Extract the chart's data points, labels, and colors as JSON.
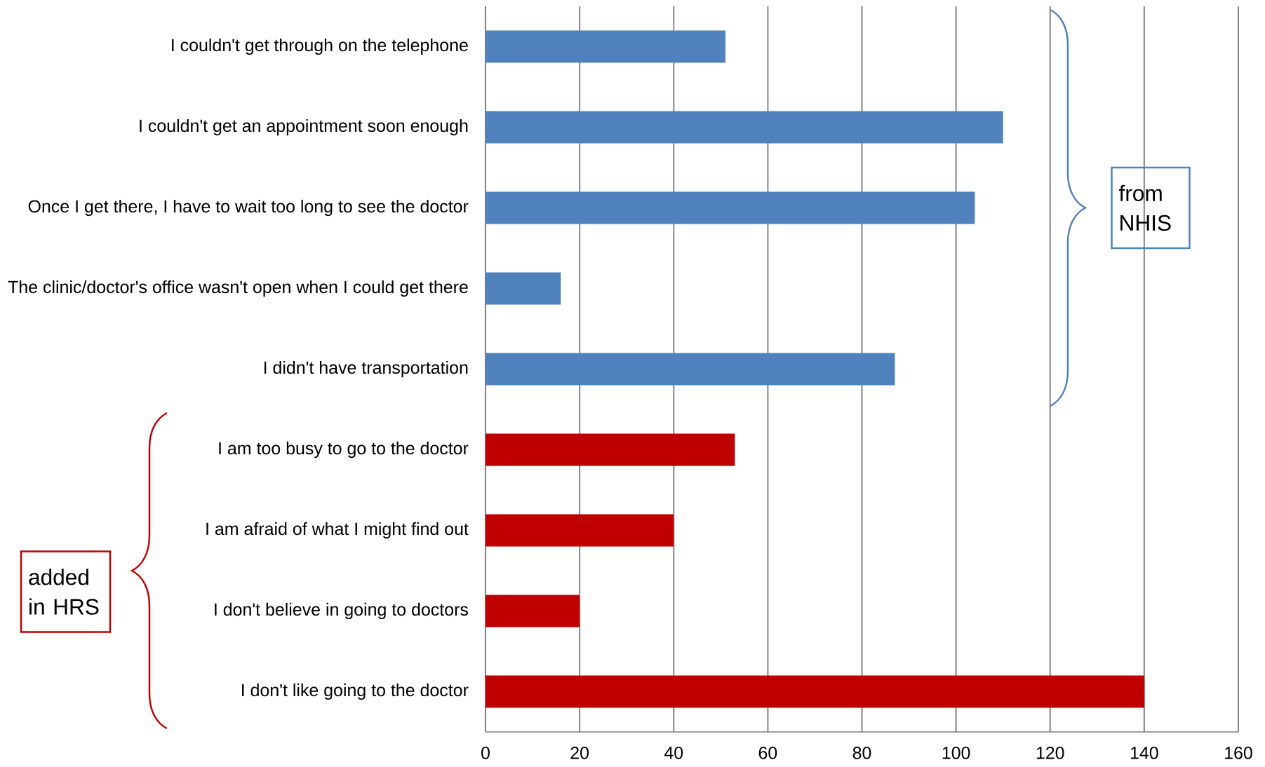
{
  "chart_data": {
    "type": "bar",
    "orientation": "horizontal",
    "categories": [
      "I couldn't get through on the telephone",
      "I couldn't get an appointment soon enough",
      "Once I get there, I have to wait too long to see the doctor",
      "The clinic/doctor's office wasn't open when I could get there",
      "I didn't have transportation",
      "I am too busy to go to the doctor",
      "I am afraid of what I might find out",
      "I don't believe in going to doctors",
      "I don't like going to the doctor"
    ],
    "values": [
      51,
      110,
      104,
      16,
      87,
      53,
      40,
      20,
      140
    ],
    "colors": [
      "#4f81bd",
      "#4f81bd",
      "#4f81bd",
      "#4f81bd",
      "#4f81bd",
      "#c00000",
      "#c00000",
      "#c00000",
      "#c00000"
    ],
    "xlim": [
      0,
      160
    ],
    "xticks": [
      0,
      20,
      40,
      60,
      80,
      100,
      120,
      140,
      160
    ],
    "grid": "x",
    "annotations": [
      "from NHIS",
      "added in HRS"
    ]
  }
}
